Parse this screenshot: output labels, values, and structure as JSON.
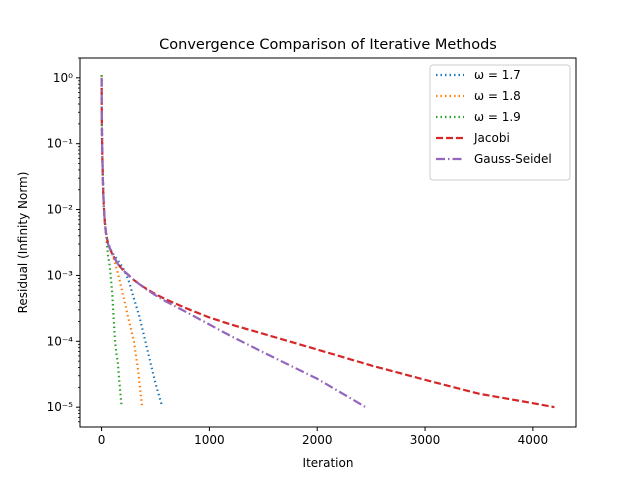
{
  "chart_data": {
    "type": "line",
    "title": "Convergence Comparison of Iterative Methods",
    "xlabel": "Iteration",
    "ylabel": "Residual (Infinity Norm)",
    "xlim": [
      -200,
      4400
    ],
    "ylim": [
      5e-06,
      2
    ],
    "yscale": "log",
    "xticks": [
      0,
      1000,
      2000,
      3000,
      4000
    ],
    "xtick_labels": [
      "0",
      "1000",
      "2000",
      "3000",
      "4000"
    ],
    "yticks": [
      1e-05,
      0.0001,
      0.001,
      0.01,
      0.1,
      1
    ],
    "ytick_labels": [
      "10⁻⁵",
      "10⁻⁴",
      "10⁻³",
      "10⁻²",
      "10⁻¹",
      "10⁰"
    ],
    "grid": false,
    "legend_position": "top-right",
    "series": [
      {
        "name": "ω = 1.7",
        "color": "#1f77b4",
        "style": "dotted",
        "x": [
          0,
          2,
          5,
          10,
          15,
          20,
          30,
          40,
          60,
          80,
          100,
          150,
          200,
          250,
          300,
          350,
          400,
          450,
          500,
          560
        ],
        "y": [
          1.1,
          0.3,
          0.1,
          0.04,
          0.02,
          0.012,
          0.0065,
          0.0045,
          0.0031,
          0.0026,
          0.0022,
          0.0017,
          0.0013,
          0.00085,
          0.00045,
          0.00024,
          0.00011,
          5e-05,
          2.3e-05,
          1.05e-05
        ]
      },
      {
        "name": "ω = 1.8",
        "color": "#ff7f0e",
        "style": "dotted",
        "x": [
          0,
          2,
          5,
          10,
          15,
          20,
          30,
          40,
          60,
          80,
          100,
          150,
          200,
          250,
          300,
          340,
          375
        ],
        "y": [
          1.1,
          0.3,
          0.1,
          0.04,
          0.02,
          0.012,
          0.0065,
          0.0045,
          0.003,
          0.0025,
          0.0021,
          0.0011,
          0.0005,
          0.00022,
          0.0001,
          3.5e-05,
          1.05e-05
        ]
      },
      {
        "name": "ω = 1.9",
        "color": "#2ca02c",
        "style": "dotted",
        "x": [
          0,
          2,
          5,
          10,
          15,
          20,
          30,
          40,
          50,
          60,
          70,
          80,
          100,
          110,
          125,
          140,
          150,
          160,
          170,
          185
        ],
        "y": [
          1.1,
          0.3,
          0.1,
          0.04,
          0.02,
          0.012,
          0.0065,
          0.0045,
          0.003,
          0.002,
          0.0016,
          0.0012,
          0.0005,
          0.00025,
          0.0001,
          6e-05,
          5e-05,
          3e-05,
          2e-05,
          1.05e-05
        ]
      },
      {
        "name": "Jacobi",
        "color": "#d62728",
        "style": "dashed",
        "x": [
          0,
          2,
          5,
          10,
          15,
          20,
          30,
          40,
          60,
          80,
          100,
          150,
          200,
          300,
          400,
          500,
          600,
          800,
          1000,
          1200,
          1500,
          2000,
          2500,
          3000,
          3500,
          4000,
          4200
        ],
        "y": [
          1.0,
          0.3,
          0.1,
          0.04,
          0.02,
          0.012,
          0.0065,
          0.0045,
          0.003,
          0.0025,
          0.0021,
          0.0015,
          0.0012,
          0.00085,
          0.00065,
          0.00052,
          0.00043,
          0.00031,
          0.00023,
          0.00018,
          0.00013,
          7.5e-05,
          4.3e-05,
          2.6e-05,
          1.6e-05,
          1.15e-05,
          1e-05
        ]
      },
      {
        "name": "Gauss-Seidel",
        "color": "#9467bd",
        "style": "dashdot",
        "x": [
          0,
          2,
          5,
          10,
          15,
          20,
          30,
          40,
          60,
          80,
          100,
          150,
          200,
          300,
          400,
          500,
          600,
          800,
          1000,
          1200,
          1500,
          2000,
          2450
        ],
        "y": [
          1.0,
          0.3,
          0.1,
          0.04,
          0.02,
          0.012,
          0.0065,
          0.0045,
          0.003,
          0.0025,
          0.0021,
          0.0015,
          0.0012,
          0.00085,
          0.00064,
          0.0005,
          0.0004,
          0.00027,
          0.00018,
          0.00012,
          6.8e-05,
          2.7e-05,
          1e-05
        ]
      }
    ]
  }
}
